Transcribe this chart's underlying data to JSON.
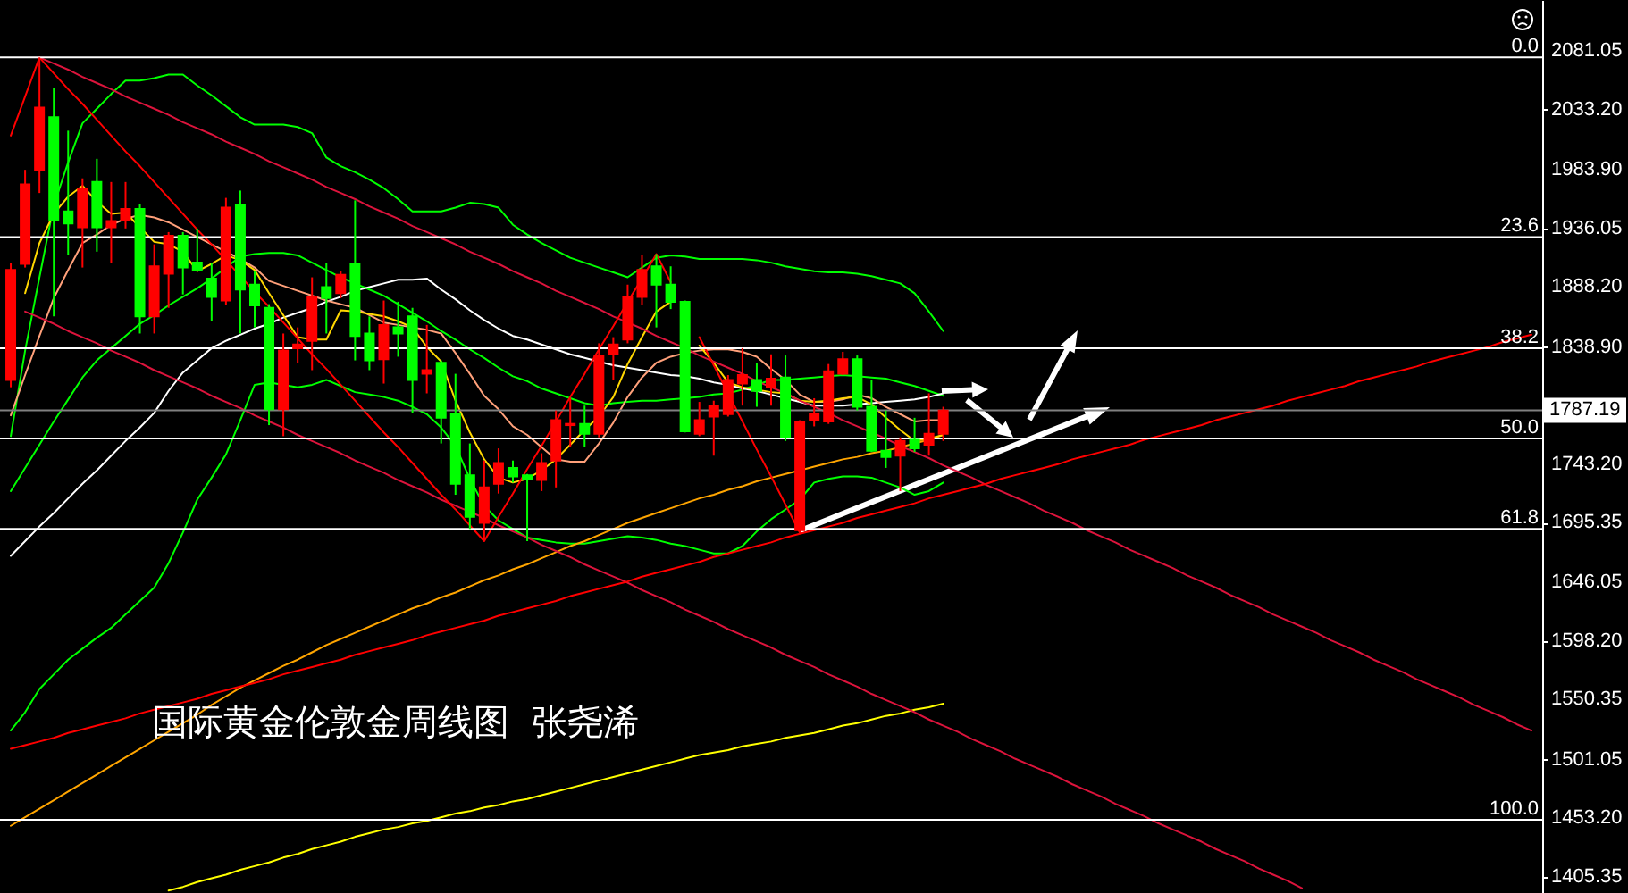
{
  "chart_data": {
    "type": "candlestick",
    "title": "国际黄金伦敦金周线图  张尧浠",
    "categories": [
      null,
      null,
      null,
      null,
      null,
      null,
      null,
      null,
      null,
      null,
      null,
      null,
      null,
      null,
      null,
      null,
      null,
      null,
      null,
      null,
      null,
      null,
      null,
      null,
      null,
      null,
      null,
      null,
      null,
      null,
      null,
      null,
      null,
      null,
      null,
      null,
      null,
      null,
      null,
      null,
      null,
      null,
      null,
      null,
      null,
      null,
      null,
      null,
      null,
      null,
      null,
      null,
      null,
      null,
      null,
      null,
      null,
      null,
      null,
      null,
      null,
      null,
      null,
      null,
      null,
      null,
      null,
      null,
      null,
      null,
      null,
      null,
      null,
      null,
      null,
      null,
      null,
      null,
      null,
      null,
      null,
      null,
      null,
      null,
      null,
      null,
      null,
      null,
      null,
      null,
      null,
      null,
      null,
      null,
      null,
      null,
      null,
      null,
      null,
      null,
      null,
      null,
      null,
      null,
      null,
      null,
      null
    ],
    "ohlc": [
      [
        1812,
        1908,
        1806,
        1902
      ],
      [
        1907,
        1984,
        1904,
        1972
      ],
      [
        1984,
        2076,
        1965,
        2035
      ],
      [
        2027,
        2051,
        1864,
        1943
      ],
      [
        1950,
        2016,
        1914,
        1940
      ],
      [
        1937,
        1977,
        1904,
        1968
      ],
      [
        1974,
        1993,
        1917,
        1937
      ],
      [
        1937,
        1974,
        1908,
        1942
      ],
      [
        1943,
        1974,
        1936,
        1952
      ],
      [
        1952,
        1956,
        1850,
        1864
      ],
      [
        1864,
        1923,
        1850,
        1905
      ],
      [
        1899,
        1933,
        1871,
        1930
      ],
      [
        1930,
        1933,
        1882,
        1904
      ],
      [
        1908,
        1936,
        1901,
        1902
      ],
      [
        1895,
        1908,
        1860,
        1880
      ],
      [
        1877,
        1961,
        1873,
        1953
      ],
      [
        1955,
        1967,
        1850,
        1886
      ],
      [
        1890,
        1901,
        1855,
        1873
      ],
      [
        1871,
        1874,
        1775,
        1788
      ],
      [
        1788,
        1850,
        1766,
        1836
      ],
      [
        1838,
        1855,
        1826,
        1841
      ],
      [
        1844,
        1896,
        1820,
        1880
      ],
      [
        1888,
        1908,
        1850,
        1879
      ],
      [
        1883,
        1901,
        1879,
        1898
      ],
      [
        1907,
        1959,
        1828,
        1848
      ],
      [
        1850,
        1864,
        1820,
        1828
      ],
      [
        1829,
        1877,
        1809,
        1857
      ],
      [
        1855,
        1876,
        1831,
        1850
      ],
      [
        1864,
        1871,
        1785,
        1812
      ],
      [
        1817,
        1857,
        1801,
        1820
      ],
      [
        1826,
        1828,
        1760,
        1781
      ],
      [
        1784,
        1817,
        1718,
        1727
      ],
      [
        1734,
        1760,
        1690,
        1700
      ],
      [
        1695,
        1746,
        1680,
        1724
      ],
      [
        1727,
        1756,
        1719,
        1744
      ],
      [
        1740,
        1746,
        1728,
        1733
      ],
      [
        1734,
        1735,
        1680,
        1731
      ],
      [
        1730,
        1752,
        1721,
        1744
      ],
      [
        1746,
        1787,
        1724,
        1779
      ],
      [
        1775,
        1797,
        1757,
        1776
      ],
      [
        1776,
        1791,
        1757,
        1768
      ],
      [
        1768,
        1842,
        1765,
        1832
      ],
      [
        1833,
        1847,
        1812,
        1841
      ],
      [
        1845,
        1890,
        1842,
        1880
      ],
      [
        1880,
        1914,
        1873,
        1902
      ],
      [
        1905,
        1915,
        1855,
        1890
      ],
      [
        1890,
        1905,
        1870,
        1876
      ],
      [
        1876,
        1877,
        1769,
        1770
      ],
      [
        1768,
        1794,
        1766,
        1779
      ],
      [
        1782,
        1795,
        1750,
        1791
      ],
      [
        1784,
        1816,
        1782,
        1812
      ],
      [
        1809,
        1838,
        1791,
        1816
      ],
      [
        1812,
        1826,
        1790,
        1803
      ],
      [
        1806,
        1833,
        1791,
        1813
      ],
      [
        1814,
        1832,
        1762,
        1765
      ],
      [
        1689,
        1779,
        1687,
        1778
      ],
      [
        1779,
        1797,
        1774,
        1784
      ],
      [
        1778,
        1825,
        1776,
        1819
      ],
      [
        1817,
        1835,
        1816,
        1829
      ],
      [
        1829,
        1832,
        1787,
        1790
      ],
      [
        1790,
        1812,
        1753,
        1754
      ],
      [
        1754,
        1787,
        1740,
        1749
      ],
      [
        1750,
        1765,
        1721,
        1762
      ],
      [
        1763,
        1781,
        1753,
        1756
      ],
      [
        1759,
        1801,
        1750,
        1768
      ],
      [
        1768,
        1790,
        1762,
        1787
      ],
      null,
      null,
      null,
      null,
      null,
      null,
      null,
      null,
      null,
      null,
      null,
      null,
      null,
      null,
      null,
      null,
      null,
      null,
      null,
      null,
      null,
      null,
      null,
      null,
      null,
      null,
      null,
      null,
      null,
      null,
      null,
      null,
      null,
      null,
      null,
      null,
      null,
      null,
      null,
      null,
      null
    ],
    "colors": [
      "#ff0000",
      "#ff0000",
      "#ff0000",
      "#00ff00",
      "#00ff00",
      "#ff0000",
      "#00ff00",
      "#ff0000",
      "#ff0000",
      "#00ff00",
      "#ff0000",
      "#ff0000",
      "#00ff00",
      "#00ff00",
      "#00ff00",
      "#ff0000",
      "#00ff00",
      "#00ff00",
      "#00ff00",
      "#ff0000",
      "#ff0000",
      "#ff0000",
      "#00ff00",
      "#ff0000",
      "#00ff00",
      "#00ff00",
      "#ff0000",
      "#00ff00",
      "#00ff00",
      "#ff0000",
      "#00ff00",
      "#00ff00",
      "#00ff00",
      "#ff0000",
      "#ff0000",
      "#00ff00",
      "#00ff00",
      "#ff0000",
      "#ff0000",
      "#ff0000",
      "#00ff00",
      "#ff0000",
      "#ff0000",
      "#ff0000",
      "#ff0000",
      "#00ff00",
      "#00ff00",
      "#00ff00",
      "#ff0000",
      "#ff0000",
      "#ff0000",
      "#ff0000",
      "#00ff00",
      "#ff0000",
      "#00ff00",
      "#ff0000",
      "#ff0000",
      "#ff0000",
      "#ff0000",
      "#00ff00",
      "#00ff00",
      "#00ff00",
      "#ff0000",
      "#00ff00",
      "#ff0000",
      "#ff0000",
      null,
      null,
      null,
      null,
      null,
      null,
      null,
      null,
      null,
      null,
      null,
      null,
      null,
      null,
      null,
      null,
      null,
      null,
      null,
      null,
      null,
      null,
      null,
      null,
      null,
      null,
      null,
      null,
      null,
      null,
      null,
      null,
      null,
      null,
      null,
      null,
      null,
      null,
      null,
      null,
      null
    ],
    "series": [
      {
        "type": "line",
        "color": "#00ff00",
        "values": [
          1766,
          1836,
          1896,
          1955,
          1990,
          2022,
          2034,
          2046,
          2057,
          2057,
          2059,
          2062,
          2062,
          2053,
          2045,
          2036,
          2027,
          2021,
          2021,
          2021,
          2019,
          2014,
          1994,
          1987,
          1982,
          1976,
          1969,
          1960,
          1950,
          1950,
          1950,
          1953,
          1957,
          1956,
          1953,
          1939,
          1931,
          1924,
          1918,
          1912,
          1908,
          1904,
          1900,
          1896,
          1904,
          1912,
          1914,
          1913,
          1911,
          1911,
          1911,
          1911,
          1910,
          1908,
          1905,
          1903,
          1901,
          1900,
          1900,
          1899,
          1897,
          1894,
          1891,
          1883,
          1868,
          1852,
          null,
          null,
          null,
          null,
          null,
          null,
          null,
          null,
          null,
          null,
          null,
          null,
          null,
          null,
          null,
          null,
          null,
          null,
          null,
          null,
          null,
          null,
          null,
          null,
          null,
          null,
          null,
          null,
          null,
          null,
          null,
          null,
          null,
          null,
          null,
          null,
          null,
          null,
          null,
          null,
          null
        ]
      },
      {
        "type": "line",
        "color": "#00ff00",
        "values": [
          1721,
          1740,
          1759,
          1778,
          1796,
          1814,
          1828,
          1838,
          1848,
          1858,
          1865,
          1873,
          1880,
          1887,
          1895,
          1904,
          1913,
          1915,
          1916,
          1916,
          1914,
          1908,
          1902,
          1896,
          1891,
          1886,
          1881,
          1874,
          1867,
          1860,
          1852,
          1845,
          1837,
          1830,
          1822,
          1815,
          1811,
          1805,
          1801,
          1797,
          1793,
          1791,
          1793,
          1794,
          1795,
          1795,
          1796,
          1797,
          1798,
          1800,
          1801,
          1804,
          1808,
          1812,
          1812,
          1813,
          1814,
          1815,
          1816,
          1815,
          1814,
          1813,
          1810,
          1807,
          1803,
          1799,
          null,
          null,
          null,
          null,
          null,
          null,
          null,
          null,
          null,
          null,
          null,
          null,
          null,
          null,
          null,
          null,
          null,
          null,
          null,
          null,
          null,
          null,
          null,
          null,
          null,
          null,
          null,
          null,
          null,
          null,
          null,
          null,
          null,
          null,
          null,
          null,
          null,
          null,
          null,
          null,
          null
        ]
      },
      {
        "type": "line",
        "color": "#00ff00",
        "values": [
          1525,
          1540,
          1559,
          1571,
          1583,
          1592,
          1601,
          1609,
          1620,
          1631,
          1642,
          1662,
          1687,
          1714,
          1732,
          1751,
          1779,
          1808,
          1810,
          1808,
          1806,
          1808,
          1812,
          1807,
          1802,
          1800,
          1798,
          1795,
          1790,
          1784,
          1773,
          1758,
          1731,
          1709,
          1697,
          1690,
          1683,
          1681,
          1679,
          1678,
          1678,
          1680,
          1682,
          1684,
          1683,
          1681,
          1678,
          1676,
          1673,
          1670,
          1670,
          1676,
          1688,
          1698,
          1706,
          1714,
          1728,
          1731,
          1733,
          1733,
          1732,
          1728,
          1724,
          1718,
          1721,
          1728,
          null,
          null,
          null,
          null,
          null,
          null,
          null,
          null,
          null,
          null,
          null,
          null,
          null,
          null,
          null,
          null,
          null,
          null,
          null,
          null,
          null,
          null,
          null,
          null,
          null,
          null,
          null,
          null,
          null,
          null,
          null,
          null,
          null,
          null,
          null,
          null,
          null,
          null,
          null,
          null,
          null
        ]
      },
      {
        "type": "line",
        "color": "#ffffff",
        "values": [
          1668,
          1680,
          1692,
          1703,
          1715,
          1727,
          1738,
          1750,
          1762,
          1773,
          1785,
          1803,
          1818,
          1828,
          1838,
          1844,
          1849,
          1854,
          1858,
          1863,
          1867,
          1871,
          1876,
          1880,
          1885,
          1888,
          1891,
          1894,
          1894,
          1895,
          1886,
          1878,
          1869,
          1861,
          1854,
          1848,
          1845,
          1841,
          1837,
          1833,
          1830,
          1827,
          1824,
          1822,
          1820,
          1818,
          1816,
          1815,
          1813,
          1810,
          1808,
          1805,
          1803,
          1800,
          1797,
          1794,
          1791,
          1791,
          1791,
          1792,
          1793,
          1794,
          1795,
          1796,
          1798,
          1801,
          null,
          null,
          null,
          null,
          null,
          null,
          null,
          null,
          null,
          null,
          null,
          null,
          null,
          null,
          null,
          null,
          null,
          null,
          null,
          null,
          null,
          null,
          null,
          null,
          null,
          null,
          null,
          null,
          null,
          null,
          null,
          null,
          null,
          null,
          null,
          null,
          null,
          null,
          null,
          null,
          null
        ]
      },
      {
        "type": "line",
        "color": "#ffa500",
        "values": [
          1447,
          1454,
          1461,
          1468,
          1475,
          1482,
          1489,
          1496,
          1503,
          1510,
          1517,
          1524,
          1531,
          1538,
          1546,
          1553,
          1560,
          1566,
          1572,
          1578,
          1583,
          1589,
          1595,
          1600,
          1605,
          1610,
          1615,
          1620,
          1625,
          1629,
          1634,
          1638,
          1643,
          1648,
          1652,
          1657,
          1661,
          1666,
          1671,
          1676,
          1680,
          1685,
          1690,
          1695,
          1699,
          1703,
          1707,
          1711,
          1715,
          1718,
          1722,
          1725,
          1729,
          1732,
          1735,
          1738,
          1741,
          1744,
          1747,
          1749,
          1752,
          1754,
          1757,
          1760,
          1763,
          1767,
          null,
          null,
          null,
          null,
          null,
          null,
          null,
          null,
          null,
          null,
          null,
          null,
          null,
          null,
          null,
          null,
          null,
          null,
          null,
          null,
          null,
          null,
          null,
          null,
          null,
          null,
          null,
          null,
          null,
          null,
          null,
          null,
          null,
          null,
          null,
          null,
          null,
          null,
          null,
          null,
          null
        ]
      },
      {
        "type": "line",
        "color": "#ffa07a",
        "values": [
          1783,
          1816,
          1848,
          1879,
          1902,
          1924,
          1931,
          1939,
          1944,
          1947,
          1945,
          1941,
          1935,
          1929,
          1923,
          1917,
          1911,
          1904,
          1893,
          1889,
          1885,
          1881,
          1877,
          1874,
          1871,
          1865,
          1859,
          1857,
          1855,
          1853,
          1850,
          1834,
          1817,
          1799,
          1788,
          1774,
          1767,
          1757,
          1747,
          1745,
          1745,
          1760,
          1777,
          1798,
          1814,
          1826,
          1831,
          1834,
          1836,
          1837,
          1837,
          1835,
          1831,
          1821,
          1812,
          1800,
          1794,
          1794,
          1796,
          1800,
          1797,
          1790,
          1784,
          1778,
          1779,
          1779,
          null,
          null,
          null,
          null,
          null,
          null,
          null,
          null,
          null,
          null,
          null,
          null,
          null,
          null,
          null,
          null,
          null,
          null,
          null,
          null,
          null,
          null,
          null,
          null,
          null,
          null,
          null,
          null,
          null,
          null,
          null,
          null,
          null,
          null,
          null,
          null,
          null,
          null,
          null,
          null,
          null
        ]
      },
      {
        "type": "line",
        "color": "#ffff00",
        "values": [
          null,
          null,
          null,
          null,
          null,
          null,
          null,
          null,
          null,
          null,
          null,
          1394,
          1397,
          1401,
          1404,
          1407,
          1411,
          1414,
          1417,
          1421,
          1424,
          1428,
          1431,
          1434,
          1438,
          1441,
          1444,
          1446,
          1449,
          1451,
          1454,
          1457,
          1459,
          1462,
          1464,
          1467,
          1469,
          1472,
          1475,
          1478,
          1481,
          1484,
          1487,
          1490,
          1493,
          1496,
          1499,
          1502,
          1505,
          1507,
          1509,
          1512,
          1514,
          1516,
          1519,
          1521,
          1523,
          1526,
          1529,
          1531,
          1534,
          1537,
          1539,
          1542,
          1544,
          1547,
          null,
          null,
          null,
          null,
          null,
          null,
          null,
          null,
          null,
          null,
          null,
          null,
          null,
          null,
          null,
          null,
          null,
          null,
          null,
          null,
          null,
          null,
          null,
          null,
          null,
          null,
          null,
          null,
          null,
          null,
          null,
          null,
          null,
          null,
          null,
          null,
          null,
          null,
          null,
          null,
          null
        ]
      },
      {
        "type": "line",
        "color": "#ffd700",
        "values": [
          null,
          1883,
          1924,
          1948,
          1962,
          1971,
          1958,
          1948,
          1949,
          1937,
          1925,
          1923,
          1917,
          1901,
          1907,
          1914,
          1910,
          1902,
          1883,
          1865,
          1847,
          1845,
          1845,
          1869,
          1868,
          1866,
          1864,
          1860,
          1855,
          1839,
          1827,
          1795,
          1769,
          1747,
          1732,
          1728,
          1731,
          1738,
          1747,
          1759,
          1771,
          1782,
          1798,
          1825,
          1847,
          1868,
          1876,
          null,
          1840,
          1826,
          1810,
          1806,
          1804,
          1802,
          1801,
          1795,
          1794,
          1795,
          1797,
          1798,
          1792,
          1781,
          1771,
          1762,
          1764,
          1767,
          null,
          null,
          null,
          null,
          null,
          null,
          null,
          null,
          null,
          null,
          null,
          null,
          null,
          null,
          null,
          null,
          null,
          null,
          null,
          null,
          null,
          null,
          null,
          null,
          null,
          null,
          null,
          null,
          null,
          null,
          null,
          null,
          null,
          null,
          null,
          null,
          null,
          null,
          null,
          null,
          null
        ]
      },
      {
        "type": "line",
        "color": "#dc143c",
        "values": [
          null,
          null,
          2076,
          2071,
          2066,
          2060,
          2055,
          2050,
          2044,
          2039,
          2034,
          2029,
          2023,
          2018,
          2013,
          2007,
          2002,
          1997,
          1991,
          1986,
          1981,
          1976,
          1970,
          1965,
          1960,
          1954,
          1949,
          1944,
          1938,
          1933,
          1928,
          1923,
          1917,
          1912,
          1907,
          1901,
          1896,
          1891,
          1885,
          1880,
          1875,
          1870,
          1864,
          1859,
          1854,
          1848,
          1843,
          1838,
          1832,
          1827,
          1822,
          1817,
          1811,
          1806,
          1801,
          1795,
          1790,
          1785,
          1779,
          1774,
          1769,
          1764,
          1758,
          1753,
          1748,
          1742,
          1737,
          1732,
          1726,
          1721,
          1716,
          1711,
          1705,
          1700,
          1695,
          1689,
          1684,
          1679,
          1673,
          1668,
          1663,
          1658,
          1652,
          1647,
          1642,
          1636,
          1631,
          1626,
          1620,
          1615,
          1610,
          1605,
          1599,
          1594,
          1589,
          1583,
          1578,
          1573,
          1567,
          1562,
          1557,
          1552,
          1546,
          1541,
          1536,
          1530,
          1525
        ]
      },
      {
        "type": "line",
        "color": "#dc143c",
        "values": [
          null,
          1868,
          1863,
          1858,
          1852,
          1847,
          1842,
          1836,
          1831,
          1826,
          1820,
          1815,
          1810,
          1805,
          1799,
          1794,
          1789,
          1783,
          1778,
          1773,
          1767,
          1762,
          1757,
          1752,
          1746,
          1741,
          1736,
          1730,
          1725,
          1720,
          1714,
          1709,
          1704,
          1699,
          1693,
          1688,
          1683,
          1677,
          1672,
          1667,
          1661,
          1656,
          1651,
          1646,
          1640,
          1635,
          1630,
          1624,
          1619,
          1614,
          1608,
          1603,
          1598,
          1593,
          1587,
          1582,
          1577,
          1571,
          1566,
          1561,
          1555,
          1550,
          1545,
          1540,
          1534,
          1529,
          1524,
          1518,
          1513,
          1508,
          1502,
          1497,
          1492,
          1487,
          1481,
          1476,
          1471,
          1465,
          1460,
          1455,
          1449,
          1444,
          1439,
          1434,
          1428,
          1423,
          1418,
          1412,
          1407,
          1402,
          1396,
          null,
          null,
          null,
          null,
          null,
          null,
          null,
          null,
          null,
          null,
          null,
          null,
          null,
          null,
          null,
          null
        ]
      },
      {
        "type": "line",
        "color": "#ff0000",
        "values": [
          2012,
          2044,
          2076,
          2063,
          2050,
          2038,
          2025,
          2012,
          1999,
          1987,
          1974,
          1961,
          1948,
          1935,
          1923,
          1910,
          1897,
          1884,
          1872,
          1859,
          1846,
          1833,
          1821,
          1808,
          1795,
          1782,
          1769,
          1757,
          1744,
          1731,
          1718,
          1706,
          1693,
          1680,
          1700,
          1719,
          1739,
          1758,
          1778,
          1798,
          1817,
          1837,
          1856,
          1876,
          1895,
          1915,
          1892,
          null,
          1847,
          1824,
          1801,
          1778,
          1755,
          1733,
          1710,
          1687,
          null,
          null,
          null,
          null,
          null,
          null,
          null,
          null,
          null,
          null,
          null,
          null,
          null,
          null,
          null,
          null,
          null,
          null,
          null,
          null,
          null,
          null,
          null,
          null,
          null,
          null,
          null,
          null,
          null,
          null,
          null,
          null,
          null,
          null,
          null,
          null,
          null,
          null,
          null,
          null,
          null,
          null,
          null,
          null,
          null,
          null,
          null,
          null,
          null,
          null,
          null
        ]
      },
      {
        "type": "line",
        "color": "#ff0000",
        "values": [
          1510,
          1513,
          1516,
          1519,
          1523,
          1526,
          1529,
          1532,
          1535,
          1539,
          1542,
          1545,
          1548,
          1551,
          1555,
          1558,
          1561,
          1564,
          1567,
          1571,
          1574,
          1577,
          1580,
          1583,
          1587,
          1590,
          1593,
          1596,
          1599,
          1603,
          1606,
          1609,
          1612,
          1615,
          1619,
          1622,
          1625,
          1628,
          1631,
          1635,
          1638,
          1641,
          1644,
          1647,
          1651,
          1654,
          1657,
          1660,
          1663,
          1667,
          1670,
          1673,
          1676,
          1679,
          1683,
          1686,
          1689,
          1692,
          1695,
          1699,
          1702,
          1705,
          1708,
          1711,
          1715,
          1718,
          1721,
          1724,
          1727,
          1731,
          1734,
          1737,
          1740,
          1743,
          1747,
          1750,
          1753,
          1756,
          1759,
          1763,
          1766,
          1769,
          1772,
          1775,
          1779,
          1782,
          1785,
          1788,
          1791,
          1795,
          1798,
          1801,
          1804,
          1807,
          1811,
          1814,
          1817,
          1820,
          1823,
          1827,
          1830,
          1833,
          1836,
          1839,
          1843,
          1846,
          1849
        ]
      }
    ],
    "ylim": [
      1392,
      2123
    ],
    "yticks": [
      2081.05,
      {
        "value": 2033.2,
        "label": "2033.20"
      },
      {
        "value": 1983.9,
        "label": "1983.90"
      },
      1936.05,
      {
        "value": 1888.2,
        "label": "1888.20"
      },
      {
        "value": 1838.9,
        "label": "1838.90"
      },
      {
        "value": 1743.2,
        "label": "1743.20"
      },
      1695.35,
      1646.05,
      {
        "value": 1598.2,
        "label": "1598.20"
      },
      1550.35,
      1501.05,
      {
        "value": 1453.2,
        "label": "1453.20"
      },
      1405.35
    ],
    "ref_lines": [
      {
        "axis": "y",
        "value": 2076,
        "color": "#ffffff"
      },
      {
        "axis": "y",
        "value": 1929,
        "color": "#ffffff"
      },
      {
        "axis": "y",
        "value": 1838,
        "color": "#ffffff"
      },
      {
        "axis": "y",
        "value": 1764,
        "color": "#ffffff"
      },
      {
        "axis": "y",
        "value": 1690,
        "color": "#ffffff"
      },
      {
        "axis": "y",
        "value": 1452,
        "color": "#ffffff"
      },
      {
        "axis": "y",
        "value": 1787.19,
        "label": "1787.19",
        "color": "#808080"
      }
    ],
    "annotations": [
      {
        "text": "0.0",
        "y": 2076
      },
      {
        "text": "23.6",
        "y": 1929
      },
      {
        "text": "38.2",
        "y": 1838
      },
      {
        "text": "50.0",
        "y": 1764
      },
      {
        "text": "61.8",
        "y": 1690
      },
      {
        "text": "100.0",
        "y": 1452
      }
    ],
    "tick_labels": "y"
  }
}
